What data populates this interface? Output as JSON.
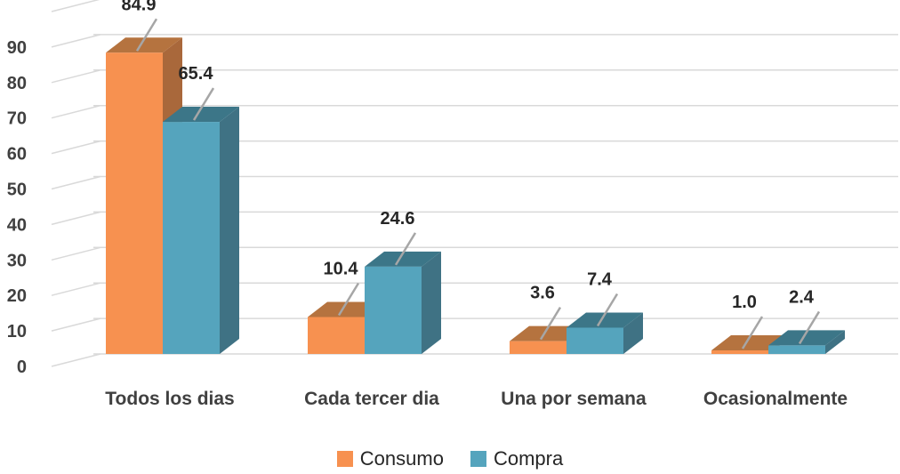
{
  "chart_data": {
    "type": "bar",
    "categories": [
      "Todos los dias",
      "Cada tercer dia",
      "Una por semana",
      "Ocasionalmente"
    ],
    "series": [
      {
        "name": "Consumo",
        "values": [
          84.9,
          10.4,
          3.6,
          1.0
        ],
        "labels": [
          "84.9",
          "10.4",
          "3.6",
          "1.0"
        ],
        "color": "#F79150",
        "side_color": "#A9683B",
        "top_color": "#B5733F"
      },
      {
        "name": "Compra",
        "values": [
          65.4,
          24.6,
          7.4,
          2.4
        ],
        "labels": [
          "65.4",
          "24.6",
          "7.4",
          "2.4"
        ],
        "color": "#55A4BD",
        "side_color": "#3F7284",
        "top_color": "#3C7688"
      }
    ],
    "yticks": [
      "0",
      "10",
      "20",
      "30",
      "40",
      "50",
      "60",
      "70",
      "80",
      "90"
    ],
    "ylim": [
      0,
      100
    ],
    "grid": true,
    "legend_position": "bottom",
    "style": "3d-clustered-column"
  }
}
